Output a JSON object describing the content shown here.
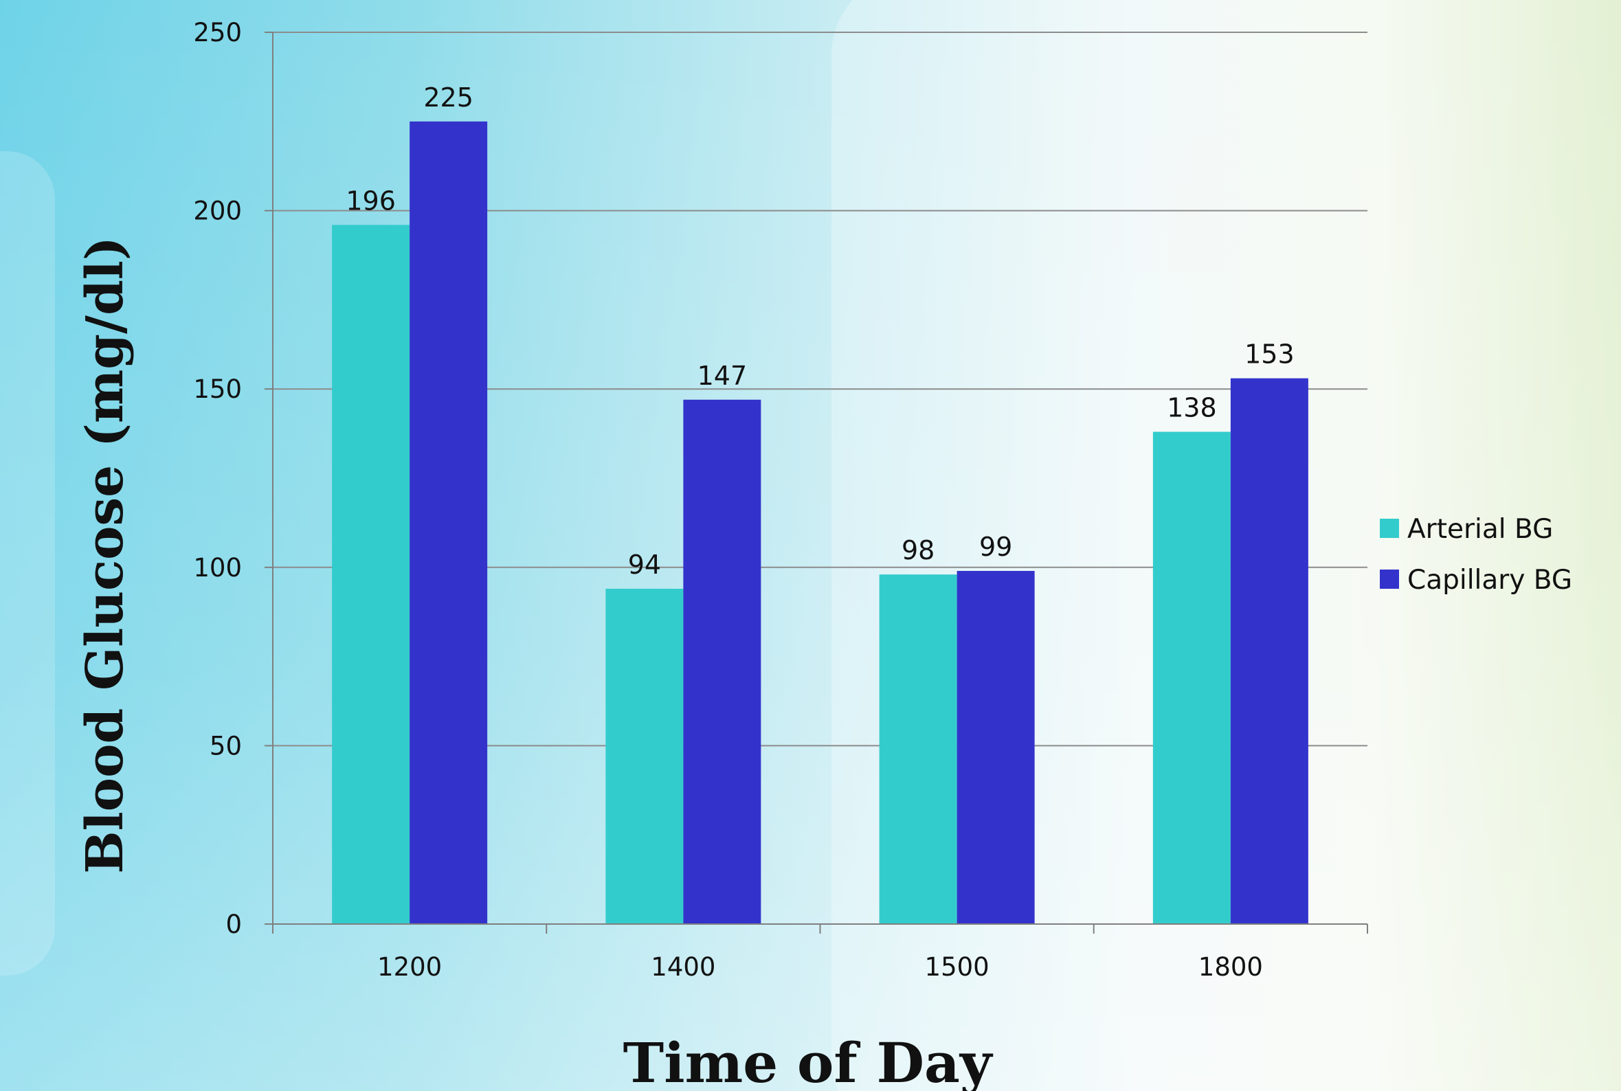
{
  "colors": {
    "arterial": "#33CCCC",
    "capillary": "#3333CC",
    "grid": "#8C8C8C",
    "axis": "#7F7F7F"
  },
  "chart_data": {
    "type": "bar",
    "categories": [
      "1200",
      "1400",
      "1500",
      "1800"
    ],
    "series": [
      {
        "name": "Arterial BG",
        "values": [
          196,
          94,
          98,
          138
        ]
      },
      {
        "name": "Capillary BG",
        "values": [
          225,
          147,
          99,
          153
        ]
      }
    ],
    "xlabel": "Time of Day",
    "ylabel": "Blood Glucose (mg/dl)",
    "ylim": [
      0,
      250
    ],
    "yticks": [
      0,
      50,
      100,
      150,
      200,
      250
    ],
    "grid": true,
    "legend": "right",
    "data_labels": true
  }
}
